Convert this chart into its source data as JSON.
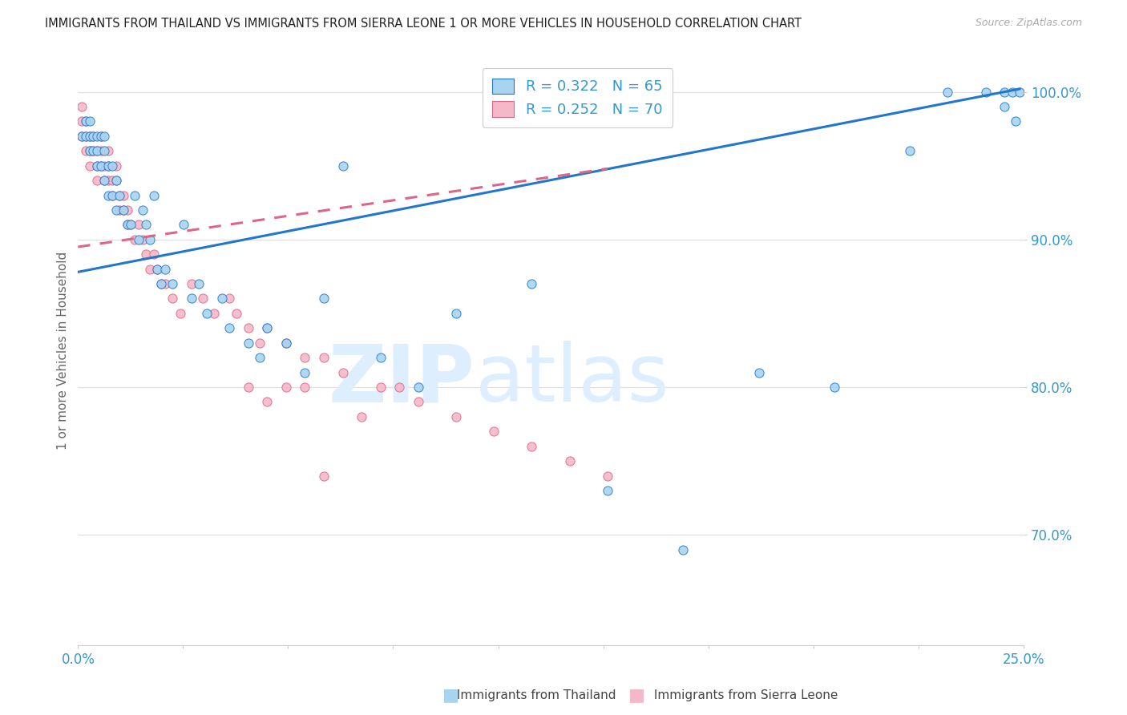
{
  "title": "IMMIGRANTS FROM THAILAND VS IMMIGRANTS FROM SIERRA LEONE 1 OR MORE VEHICLES IN HOUSEHOLD CORRELATION CHART",
  "source": "Source: ZipAtlas.com",
  "ylabel": "1 or more Vehicles in Household",
  "xmin": 0.0,
  "xmax": 0.25,
  "ymin": 0.625,
  "ymax": 1.025,
  "yticks": [
    0.7,
    0.8,
    0.9,
    1.0
  ],
  "ytick_labels": [
    "70.0%",
    "80.0%",
    "90.0%",
    "100.0%"
  ],
  "color_thailand": "#a8d4f0",
  "color_sierra_leone": "#f5b8c8",
  "trendline_color_thailand": "#2277cc",
  "trendline_color_sierra_leone": "#dd6688",
  "watermark_zip": "ZIP",
  "watermark_atlas": "atlas",
  "watermark_color": "#ddeeff",
  "background_color": "#ffffff",
  "grid_color": "#dddddd",
  "title_color": "#222222",
  "axis_label_color": "#3399cc",
  "legend_text_color": "#3399cc",
  "source_color": "#aaaaaa",
  "thailand_scatter_x": [
    0.001,
    0.002,
    0.002,
    0.003,
    0.003,
    0.003,
    0.004,
    0.004,
    0.005,
    0.005,
    0.005,
    0.006,
    0.006,
    0.007,
    0.007,
    0.007,
    0.008,
    0.008,
    0.009,
    0.009,
    0.01,
    0.01,
    0.011,
    0.012,
    0.013,
    0.014,
    0.015,
    0.016,
    0.017,
    0.018,
    0.019,
    0.02,
    0.021,
    0.022,
    0.023,
    0.025,
    0.028,
    0.03,
    0.032,
    0.034,
    0.038,
    0.04,
    0.045,
    0.048,
    0.05,
    0.055,
    0.06,
    0.065,
    0.07,
    0.08,
    0.09,
    0.1,
    0.12,
    0.14,
    0.16,
    0.18,
    0.2,
    0.22,
    0.23,
    0.24,
    0.245,
    0.245,
    0.247,
    0.248,
    0.249
  ],
  "thailand_scatter_y": [
    0.97,
    0.98,
    0.97,
    0.97,
    0.96,
    0.98,
    0.96,
    0.97,
    0.96,
    0.95,
    0.97,
    0.95,
    0.97,
    0.94,
    0.96,
    0.97,
    0.93,
    0.95,
    0.93,
    0.95,
    0.92,
    0.94,
    0.93,
    0.92,
    0.91,
    0.91,
    0.93,
    0.9,
    0.92,
    0.91,
    0.9,
    0.93,
    0.88,
    0.87,
    0.88,
    0.87,
    0.91,
    0.86,
    0.87,
    0.85,
    0.86,
    0.84,
    0.83,
    0.82,
    0.84,
    0.83,
    0.81,
    0.86,
    0.95,
    0.82,
    0.8,
    0.85,
    0.87,
    0.73,
    0.69,
    0.81,
    0.8,
    0.96,
    1.0,
    1.0,
    1.0,
    0.99,
    1.0,
    0.98,
    1.0
  ],
  "sl_scatter_x": [
    0.001,
    0.001,
    0.001,
    0.002,
    0.002,
    0.002,
    0.003,
    0.003,
    0.003,
    0.004,
    0.004,
    0.005,
    0.005,
    0.005,
    0.006,
    0.006,
    0.006,
    0.007,
    0.007,
    0.008,
    0.008,
    0.008,
    0.009,
    0.009,
    0.01,
    0.01,
    0.011,
    0.011,
    0.012,
    0.012,
    0.013,
    0.013,
    0.014,
    0.015,
    0.016,
    0.017,
    0.018,
    0.019,
    0.02,
    0.021,
    0.022,
    0.023,
    0.025,
    0.027,
    0.03,
    0.033,
    0.036,
    0.04,
    0.042,
    0.045,
    0.048,
    0.05,
    0.055,
    0.06,
    0.065,
    0.07,
    0.08,
    0.09,
    0.1,
    0.11,
    0.12,
    0.13,
    0.14,
    0.045,
    0.05,
    0.055,
    0.06,
    0.065,
    0.075,
    0.085
  ],
  "sl_scatter_y": [
    0.99,
    0.98,
    0.97,
    0.98,
    0.97,
    0.96,
    0.97,
    0.96,
    0.95,
    0.97,
    0.96,
    0.96,
    0.95,
    0.94,
    0.97,
    0.96,
    0.95,
    0.95,
    0.94,
    0.96,
    0.95,
    0.94,
    0.94,
    0.93,
    0.95,
    0.94,
    0.93,
    0.92,
    0.93,
    0.92,
    0.92,
    0.91,
    0.91,
    0.9,
    0.91,
    0.9,
    0.89,
    0.88,
    0.89,
    0.88,
    0.87,
    0.87,
    0.86,
    0.85,
    0.87,
    0.86,
    0.85,
    0.86,
    0.85,
    0.84,
    0.83,
    0.84,
    0.83,
    0.82,
    0.82,
    0.81,
    0.8,
    0.79,
    0.78,
    0.77,
    0.76,
    0.75,
    0.74,
    0.8,
    0.79,
    0.8,
    0.8,
    0.74,
    0.78,
    0.8
  ],
  "thailand_trend_x0": 0.0,
  "thailand_trend_x1": 0.249,
  "thailand_trend_y0": 0.878,
  "thailand_trend_y1": 1.002,
  "sl_trend_x0": 0.0,
  "sl_trend_x1": 0.14,
  "sl_trend_y0": 0.895,
  "sl_trend_y1": 0.948
}
